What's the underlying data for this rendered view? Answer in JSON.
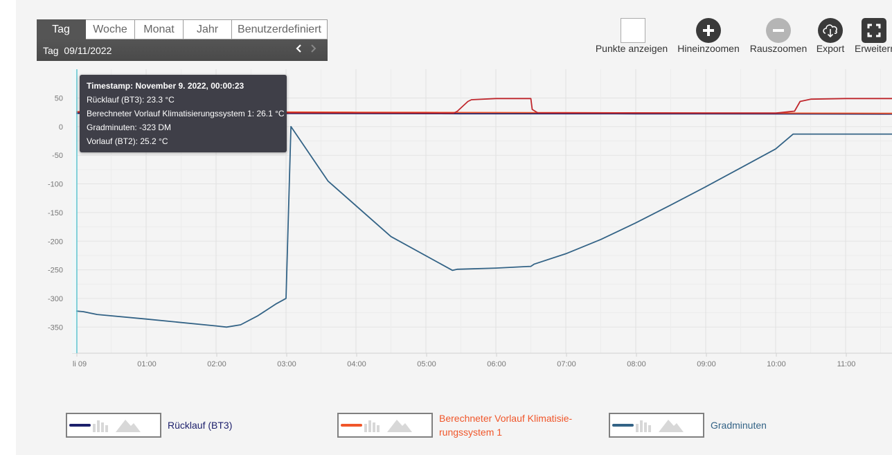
{
  "period": {
    "tabs": [
      "Tag",
      "Woche",
      "Monat",
      "Jahr",
      "Benutzerdefiniert"
    ],
    "active": "Tag",
    "date_label": "Tag  09/11/2022",
    "prev_icon": "chevron-left-icon",
    "next_icon": "chevron-right-icon"
  },
  "toolbar": {
    "show_points": "Punkte anzeigen",
    "zoom_in": "Hineinzoomen",
    "zoom_out": "Rauszoomen",
    "export": "Export",
    "expand": "Erweitern",
    "zoom_in_icon": "plus-icon",
    "zoom_out_icon": "minus-icon",
    "export_icon": "cloud-download-icon",
    "expand_icon": "fullscreen-icon"
  },
  "tooltip": {
    "lines": [
      "Timestamp: November 9. 2022, 00:00:23",
      "Rücklauf (BT3): 23.3 °C",
      "Berechneter Vorlauf Klimatisierungssystem 1: 26.1 °C",
      "Gradminuten: -323 DM",
      "Vorlauf (BT2): 25.2 °C"
    ]
  },
  "legend": [
    {
      "label_line1": "Rücklauf (BT3)",
      "label_line2": "",
      "color": "#1c1f6b"
    },
    {
      "label_line1": "Berechneter Vorlauf Klimatisie-",
      "label_line2": "rungssystem 1",
      "color": "#f0562a"
    },
    {
      "label_line1": "Gradminuten",
      "label_line2": "",
      "color": "#336386"
    }
  ],
  "chart_data": {
    "type": "line",
    "y_ticks": [
      "50",
      "0",
      "-50",
      "-100",
      "-150",
      "-200",
      "-250",
      "-300",
      "-350"
    ],
    "x_ticks": [
      "li 09",
      "01:00",
      "02:00",
      "03:00",
      "04:00",
      "05:00",
      "06:00",
      "07:00",
      "08:00",
      "09:00",
      "10:00",
      "11:00"
    ],
    "ylim": [
      -390,
      90
    ],
    "grid": true,
    "cursor_x": 0.0,
    "series": [
      {
        "name": "Gradminuten",
        "color": "#336386",
        "x": [
          0,
          0.1,
          0.3,
          1.0,
          2.0,
          2.15,
          2.35,
          2.6,
          2.85,
          2.97,
          3.0,
          3.07,
          3.6,
          4.5,
          5.38,
          5.45,
          6.0,
          6.5,
          6.55,
          7.0,
          7.5,
          8.0,
          8.5,
          9.0,
          9.5,
          10.0,
          10.25,
          10.5,
          11.0,
          11.7
        ],
        "y": [
          -322,
          -323,
          -328,
          -336,
          -348,
          -350,
          -346,
          -330,
          -310,
          -302,
          -300,
          0,
          -95,
          -192,
          -251,
          -249,
          -247,
          -244,
          -240,
          -222,
          -197,
          -168,
          -137,
          -105,
          -72,
          -39,
          -13,
          -13,
          -13,
          -13
        ]
      },
      {
        "name": "Rücklauf (BT3)",
        "color": "#1c1f6b",
        "x": [
          0,
          0.5,
          1.5,
          2.5,
          3.0,
          4.0,
          5.0,
          5.5,
          6.0,
          6.5,
          7.0,
          8.0,
          9.0,
          10.0,
          10.3,
          11.0,
          11.7
        ],
        "y": [
          23.3,
          23.2,
          23.1,
          23.0,
          22.9,
          22.8,
          22.7,
          22.6,
          22.6,
          22.5,
          22.5,
          22.4,
          22.3,
          22.2,
          22.2,
          22.1,
          22.0
        ]
      },
      {
        "name": "Berechneter Vorlauf Klimatisierungssystem 1",
        "color": "#f0562a",
        "x": [
          0,
          1.0,
          2.0,
          3.0,
          4.0,
          5.0,
          6.0,
          7.0,
          8.0,
          9.0,
          10.0,
          11.0,
          11.7
        ],
        "y": [
          26.1,
          25.8,
          25.6,
          25.4,
          25.1,
          24.9,
          24.6,
          24.4,
          24.1,
          23.9,
          23.6,
          23.4,
          23.2
        ]
      },
      {
        "name": "Vorlauf (BT2)",
        "color": "#c0272d",
        "x": [
          0,
          0.5,
          1.5,
          2.5,
          3.0,
          4.0,
          5.0,
          5.4,
          5.45,
          5.6,
          5.65,
          6.0,
          6.5,
          6.52,
          6.6,
          7.0,
          8.0,
          9.0,
          10.0,
          10.27,
          10.35,
          10.5,
          11.0,
          11.7
        ],
        "y": [
          25.2,
          25.0,
          24.8,
          24.5,
          24.3,
          24.0,
          23.8,
          23.7,
          27,
          44,
          47,
          49,
          49,
          30,
          24,
          23.9,
          23.8,
          23.7,
          23.6,
          27,
          44,
          48,
          49,
          49
        ]
      }
    ]
  }
}
